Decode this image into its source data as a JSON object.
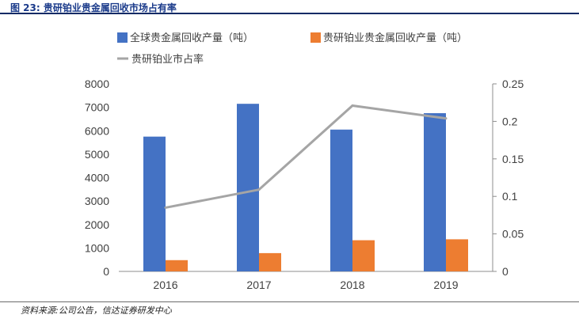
{
  "figure_title": "图 23: 贵研铂业贵金属回收市场占有率",
  "source": "资料来源:公司公告，信达证券研发中心",
  "chart_data": {
    "type": "bar",
    "categories": [
      "2016",
      "2017",
      "2018",
      "2019"
    ],
    "series": [
      {
        "name": "全球贵金属回收产量（吨）",
        "kind": "bar",
        "axis": "left",
        "color": "#4472C4",
        "values": [
          5750,
          7150,
          6050,
          6750
        ]
      },
      {
        "name": "贵研铂业贵金属回收产量（吨）",
        "kind": "bar",
        "axis": "left",
        "color": "#ED7D31",
        "values": [
          480,
          780,
          1330,
          1370
        ]
      },
      {
        "name": "贵研铂业市占率",
        "kind": "line",
        "axis": "right",
        "color": "#A5A5A5",
        "values": [
          0.085,
          0.109,
          0.221,
          0.204
        ]
      }
    ],
    "y_left": {
      "min": 0,
      "max": 8000,
      "ticks": [
        "0",
        "1000",
        "2000",
        "3000",
        "4000",
        "5000",
        "6000",
        "7000",
        "8000"
      ]
    },
    "y_right": {
      "min": 0,
      "max": 0.25,
      "ticks": [
        "0",
        "0.05",
        "0.1",
        "0.15",
        "0.2",
        "0.25"
      ]
    },
    "grid": false,
    "legend_position": "top-left"
  }
}
